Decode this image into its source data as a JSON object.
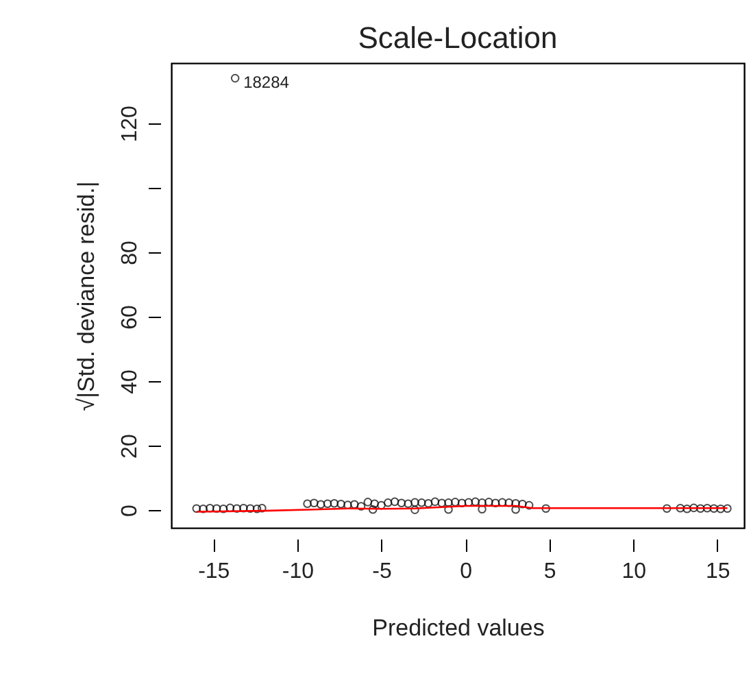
{
  "chart_data": {
    "type": "scatter",
    "title": "Scale-Location",
    "xlabel": "Predicted values",
    "ylabel": "√|Std. deviance resid.|",
    "xlim": [
      -17.5,
      16.6
    ],
    "ylim": [
      -5.5,
      138.7
    ],
    "xticks": [
      -15,
      -10,
      -5,
      0,
      5,
      10,
      15
    ],
    "yticks": [
      0,
      20,
      40,
      60,
      {
        "value": 100,
        "label": null
      },
      80,
      120
    ],
    "grid": false,
    "annotations": [
      {
        "text": "18284",
        "x": -13.7,
        "y": 134
      }
    ],
    "series": [
      {
        "type": "scatter",
        "marker": "circle",
        "color": "#000000",
        "x": [
          -13.7,
          -16,
          -15.6,
          -15.2,
          -14.8,
          -14.4,
          -14,
          -13.6,
          -13.2,
          -12.8,
          -12.4,
          -12.1,
          -9.4,
          -9,
          -8.6,
          -8.2,
          -7.8,
          -7.4,
          -7,
          -6.6,
          -6.2,
          -5.8,
          -5.4,
          -5,
          -4.6,
          -4.2,
          -3.8,
          -3.4,
          -3,
          -2.6,
          -2.2,
          -1.8,
          -1.4,
          -1,
          -0.6,
          -0.2,
          0.2,
          0.6,
          1,
          1.4,
          1.8,
          2.2,
          2.6,
          3,
          3.4,
          3.8,
          4.8,
          12,
          12.8,
          13.2,
          13.6,
          14,
          14.4,
          14.8,
          15.2,
          15.6,
          -5.5,
          -3,
          -1,
          1,
          3
        ],
        "values": [
          134,
          0.5,
          0.4,
          0.6,
          0.5,
          0.4,
          0.7,
          0.5,
          0.6,
          0.5,
          0.4,
          0.6,
          2,
          2.2,
          1.8,
          2,
          2.1,
          1.9,
          1.6,
          1.8,
          1.2,
          2.5,
          2,
          1.5,
          2.3,
          2.6,
          2.2,
          2,
          2.4,
          2.3,
          2.1,
          2.6,
          2.2,
          2.3,
          2.5,
          2.2,
          2.4,
          2.6,
          2.3,
          2.5,
          2.2,
          2.4,
          2.3,
          2.1,
          1.9,
          1.5,
          0.5,
          0.5,
          0.6,
          0.4,
          0.7,
          0.5,
          0.6,
          0.5,
          0.4,
          0.5,
          0.2,
          0.1,
          0.2,
          0.3,
          0.2
        ]
      },
      {
        "type": "line",
        "color": "#ff0000",
        "x": [
          -16,
          -12,
          -9,
          -7,
          -5,
          -3,
          0,
          3,
          4,
          8,
          12,
          15.6
        ],
        "values": [
          -0.5,
          -0.2,
          0.2,
          0.5,
          0.4,
          0.5,
          1.3,
          1.3,
          0.6,
          0.6,
          0.6,
          0.6
        ]
      }
    ]
  }
}
